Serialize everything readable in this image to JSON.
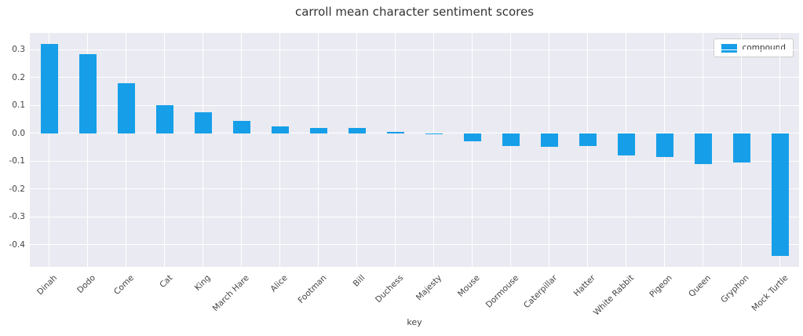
{
  "chart_data": {
    "type": "bar",
    "title": "carroll mean character sentiment scores",
    "xlabel": "key",
    "ylabel": "",
    "legend_label": "compound",
    "legend_position": "upper right",
    "grid": true,
    "plot_bg": "#eaeaf2",
    "bar_color": "#169fe8",
    "categories": [
      "Dinah",
      "Dodo",
      "Come",
      "Cat",
      "King",
      "March Hare",
      "Alice",
      "Footman",
      "Bill",
      "Duchess",
      "Majesty",
      "Mouse",
      "Dormouse",
      "Caterpillar",
      "Hatter",
      "White Rabbit",
      "Pigeon",
      "Queen",
      "Gryphon",
      "Mock Turtle"
    ],
    "series": [
      {
        "name": "compound",
        "values": [
          0.32,
          0.285,
          0.18,
          0.1,
          0.075,
          0.045,
          0.025,
          0.02,
          0.018,
          0.005,
          -0.005,
          -0.03,
          -0.045,
          -0.05,
          -0.045,
          -0.08,
          -0.085,
          -0.11,
          -0.105,
          -0.44
        ]
      }
    ],
    "yticks": [
      0.3,
      0.2,
      0.1,
      0.0,
      -0.1,
      -0.2,
      -0.3,
      -0.4
    ],
    "ylim": [
      -0.48,
      0.36
    ]
  }
}
